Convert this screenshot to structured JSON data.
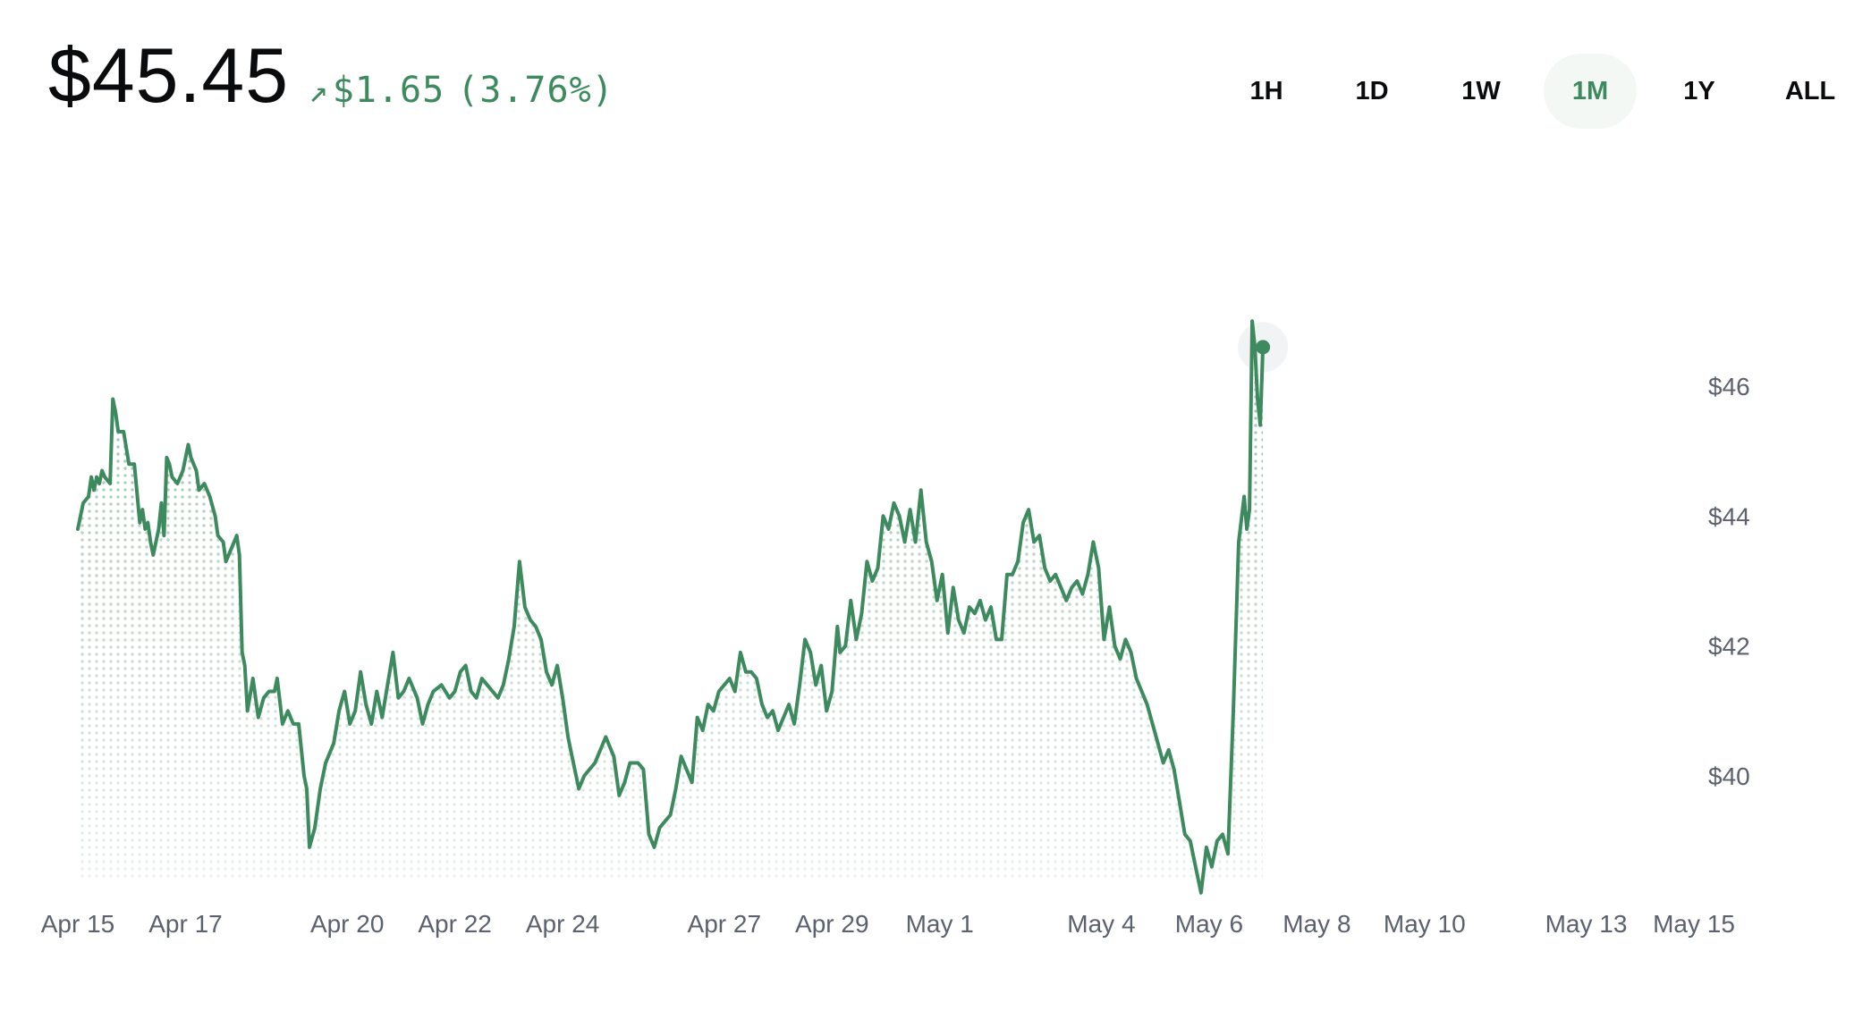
{
  "header": {
    "price": "$45.45",
    "change_arrow": "↗",
    "change_amount": "$1.65",
    "change_percent": "(3.76%)"
  },
  "time_ranges": [
    {
      "label": "1H",
      "active": false
    },
    {
      "label": "1D",
      "active": false
    },
    {
      "label": "1W",
      "active": false
    },
    {
      "label": "1M",
      "active": true
    },
    {
      "label": "1Y",
      "active": false
    },
    {
      "label": "ALL",
      "active": false
    }
  ],
  "colors": {
    "line": "#3c8a5e",
    "accent": "#3c8a5e",
    "axis_text": "#5b616e",
    "price_text": "#0a0b0d"
  },
  "chart_data": {
    "type": "line",
    "title": "",
    "xlabel": "",
    "ylabel": "",
    "y_tick_labels": [
      "$40",
      "$42",
      "$44",
      "$46"
    ],
    "y_tick_values": [
      40,
      42,
      44,
      46
    ],
    "x_tick_labels": [
      "Apr 15",
      "Apr 17",
      "Apr 20",
      "Apr 22",
      "Apr 24",
      "Apr 27",
      "Apr 29",
      "May 1",
      "May 4",
      "May 6",
      "May 8",
      "May 10",
      "May 13",
      "May 15"
    ],
    "x_tick_days": [
      0,
      2,
      5,
      7,
      9,
      12,
      14,
      16,
      19,
      21,
      23,
      25,
      28,
      30
    ],
    "x_range_days": [
      0,
      30.4
    ],
    "ylim": [
      38.4,
      47.2
    ],
    "grid": false,
    "fill": "dotted gradient under line",
    "series": [
      {
        "values": [
          [
            0.0,
            43.8
          ],
          [
            0.1,
            44.2
          ],
          [
            0.2,
            44.3
          ],
          [
            0.25,
            44.6
          ],
          [
            0.3,
            44.4
          ],
          [
            0.35,
            44.6
          ],
          [
            0.4,
            44.5
          ],
          [
            0.45,
            44.7
          ],
          [
            0.5,
            44.6
          ],
          [
            0.6,
            44.5
          ],
          [
            0.65,
            45.8
          ],
          [
            0.7,
            45.6
          ],
          [
            0.75,
            45.3
          ],
          [
            0.85,
            45.3
          ],
          [
            0.95,
            44.8
          ],
          [
            1.05,
            44.8
          ],
          [
            1.15,
            43.9
          ],
          [
            1.2,
            44.1
          ],
          [
            1.25,
            43.8
          ],
          [
            1.3,
            43.9
          ],
          [
            1.35,
            43.6
          ],
          [
            1.4,
            43.4
          ],
          [
            1.5,
            43.8
          ],
          [
            1.55,
            44.2
          ],
          [
            1.6,
            43.7
          ],
          [
            1.65,
            44.9
          ],
          [
            1.7,
            44.8
          ],
          [
            1.75,
            44.6
          ],
          [
            1.85,
            44.5
          ],
          [
            1.95,
            44.7
          ],
          [
            2.0,
            44.9
          ],
          [
            2.05,
            45.1
          ],
          [
            2.1,
            44.9
          ],
          [
            2.2,
            44.7
          ],
          [
            2.25,
            44.4
          ],
          [
            2.35,
            44.5
          ],
          [
            2.45,
            44.3
          ],
          [
            2.55,
            44.0
          ],
          [
            2.6,
            43.7
          ],
          [
            2.7,
            43.6
          ],
          [
            2.75,
            43.3
          ],
          [
            2.85,
            43.5
          ],
          [
            2.95,
            43.7
          ],
          [
            3.0,
            43.4
          ],
          [
            3.05,
            41.9
          ],
          [
            3.1,
            41.7
          ],
          [
            3.15,
            41.0
          ],
          [
            3.25,
            41.5
          ],
          [
            3.35,
            40.9
          ],
          [
            3.45,
            41.2
          ],
          [
            3.55,
            41.3
          ],
          [
            3.65,
            41.3
          ],
          [
            3.7,
            41.5
          ],
          [
            3.8,
            40.8
          ],
          [
            3.9,
            41.0
          ],
          [
            4.0,
            40.8
          ],
          [
            4.1,
            40.8
          ],
          [
            4.2,
            40.0
          ],
          [
            4.25,
            39.8
          ],
          [
            4.3,
            38.9
          ],
          [
            4.4,
            39.2
          ],
          [
            4.5,
            39.8
          ],
          [
            4.6,
            40.2
          ],
          [
            4.75,
            40.5
          ],
          [
            4.85,
            41.0
          ],
          [
            4.95,
            41.3
          ],
          [
            5.05,
            40.8
          ],
          [
            5.15,
            41.0
          ],
          [
            5.25,
            41.6
          ],
          [
            5.35,
            41.1
          ],
          [
            5.45,
            40.8
          ],
          [
            5.55,
            41.3
          ],
          [
            5.65,
            40.9
          ],
          [
            5.75,
            41.4
          ],
          [
            5.85,
            41.9
          ],
          [
            5.95,
            41.2
          ],
          [
            6.05,
            41.3
          ],
          [
            6.15,
            41.5
          ],
          [
            6.3,
            41.2
          ],
          [
            6.4,
            40.8
          ],
          [
            6.5,
            41.1
          ],
          [
            6.6,
            41.3
          ],
          [
            6.75,
            41.4
          ],
          [
            6.9,
            41.2
          ],
          [
            7.0,
            41.3
          ],
          [
            7.1,
            41.6
          ],
          [
            7.2,
            41.7
          ],
          [
            7.3,
            41.3
          ],
          [
            7.4,
            41.2
          ],
          [
            7.5,
            41.5
          ],
          [
            7.6,
            41.4
          ],
          [
            7.7,
            41.3
          ],
          [
            7.8,
            41.2
          ],
          [
            7.9,
            41.4
          ],
          [
            8.0,
            41.8
          ],
          [
            8.1,
            42.3
          ],
          [
            8.2,
            43.3
          ],
          [
            8.3,
            42.6
          ],
          [
            8.4,
            42.4
          ],
          [
            8.5,
            42.3
          ],
          [
            8.6,
            42.1
          ],
          [
            8.7,
            41.6
          ],
          [
            8.8,
            41.4
          ],
          [
            8.9,
            41.7
          ],
          [
            9.0,
            41.2
          ],
          [
            9.1,
            40.6
          ],
          [
            9.2,
            40.2
          ],
          [
            9.3,
            39.8
          ],
          [
            9.4,
            40.0
          ],
          [
            9.5,
            40.1
          ],
          [
            9.6,
            40.2
          ],
          [
            9.7,
            40.4
          ],
          [
            9.8,
            40.6
          ],
          [
            9.85,
            40.5
          ],
          [
            9.95,
            40.3
          ],
          [
            10.05,
            39.7
          ],
          [
            10.15,
            39.9
          ],
          [
            10.25,
            40.2
          ],
          [
            10.4,
            40.2
          ],
          [
            10.5,
            40.1
          ],
          [
            10.55,
            39.6
          ],
          [
            10.6,
            39.1
          ],
          [
            10.7,
            38.9
          ],
          [
            10.8,
            39.2
          ],
          [
            10.9,
            39.3
          ],
          [
            11.0,
            39.4
          ],
          [
            11.1,
            39.8
          ],
          [
            11.2,
            40.3
          ],
          [
            11.3,
            40.1
          ],
          [
            11.4,
            39.9
          ],
          [
            11.5,
            40.9
          ],
          [
            11.6,
            40.7
          ],
          [
            11.7,
            41.1
          ],
          [
            11.8,
            41.0
          ],
          [
            11.9,
            41.3
          ],
          [
            12.0,
            41.4
          ],
          [
            12.1,
            41.5
          ],
          [
            12.2,
            41.3
          ],
          [
            12.3,
            41.9
          ],
          [
            12.4,
            41.6
          ],
          [
            12.5,
            41.6
          ],
          [
            12.6,
            41.5
          ],
          [
            12.7,
            41.1
          ],
          [
            12.8,
            40.9
          ],
          [
            12.9,
            41.0
          ],
          [
            13.0,
            40.7
          ],
          [
            13.1,
            40.9
          ],
          [
            13.2,
            41.1
          ],
          [
            13.3,
            40.8
          ],
          [
            13.4,
            41.4
          ],
          [
            13.5,
            42.1
          ],
          [
            13.6,
            41.9
          ],
          [
            13.7,
            41.4
          ],
          [
            13.8,
            41.7
          ],
          [
            13.9,
            41.0
          ],
          [
            14.0,
            41.3
          ],
          [
            14.1,
            42.3
          ],
          [
            14.15,
            41.9
          ],
          [
            14.25,
            42.0
          ],
          [
            14.35,
            42.7
          ],
          [
            14.45,
            42.1
          ],
          [
            14.55,
            42.5
          ],
          [
            14.65,
            43.3
          ],
          [
            14.75,
            43.0
          ],
          [
            14.85,
            43.2
          ],
          [
            14.95,
            44.0
          ],
          [
            15.05,
            43.8
          ],
          [
            15.15,
            44.2
          ],
          [
            15.25,
            44.0
          ],
          [
            15.35,
            43.6
          ],
          [
            15.45,
            44.1
          ],
          [
            15.55,
            43.6
          ],
          [
            15.65,
            44.4
          ],
          [
            15.75,
            43.6
          ],
          [
            15.85,
            43.3
          ],
          [
            15.95,
            42.7
          ],
          [
            16.05,
            43.1
          ],
          [
            16.15,
            42.2
          ],
          [
            16.25,
            42.9
          ],
          [
            16.35,
            42.4
          ],
          [
            16.45,
            42.2
          ],
          [
            16.55,
            42.6
          ],
          [
            16.65,
            42.5
          ],
          [
            16.75,
            42.7
          ],
          [
            16.85,
            42.4
          ],
          [
            16.95,
            42.6
          ],
          [
            17.05,
            42.1
          ],
          [
            17.15,
            42.1
          ],
          [
            17.25,
            43.1
          ],
          [
            17.35,
            43.1
          ],
          [
            17.45,
            43.3
          ],
          [
            17.55,
            43.9
          ],
          [
            17.65,
            44.1
          ],
          [
            17.75,
            43.6
          ],
          [
            17.85,
            43.7
          ],
          [
            17.95,
            43.2
          ],
          [
            18.05,
            43.0
          ],
          [
            18.15,
            43.1
          ],
          [
            18.25,
            42.9
          ],
          [
            18.35,
            42.7
          ],
          [
            18.45,
            42.9
          ],
          [
            18.55,
            43.0
          ],
          [
            18.65,
            42.8
          ],
          [
            18.75,
            43.1
          ],
          [
            18.85,
            43.6
          ],
          [
            18.95,
            43.2
          ],
          [
            19.05,
            42.1
          ],
          [
            19.15,
            42.6
          ],
          [
            19.25,
            42.0
          ],
          [
            19.35,
            41.8
          ],
          [
            19.45,
            42.1
          ],
          [
            19.55,
            41.9
          ],
          [
            19.65,
            41.5
          ],
          [
            19.75,
            41.3
          ],
          [
            19.85,
            41.1
          ],
          [
            19.95,
            40.8
          ],
          [
            20.05,
            40.5
          ],
          [
            20.15,
            40.2
          ],
          [
            20.25,
            40.4
          ],
          [
            20.35,
            40.1
          ],
          [
            20.45,
            39.6
          ],
          [
            20.55,
            39.1
          ],
          [
            20.65,
            39.0
          ],
          [
            20.75,
            38.6
          ],
          [
            20.85,
            38.2
          ],
          [
            20.95,
            38.9
          ],
          [
            21.05,
            38.6
          ],
          [
            21.15,
            39.0
          ],
          [
            21.25,
            39.1
          ],
          [
            21.35,
            38.8
          ],
          [
            21.45,
            41.0
          ],
          [
            21.55,
            43.6
          ],
          [
            21.65,
            44.3
          ],
          [
            21.7,
            43.8
          ],
          [
            21.75,
            44.1
          ],
          [
            21.8,
            47.0
          ],
          [
            21.85,
            46.6
          ],
          [
            21.9,
            45.8
          ],
          [
            21.95,
            45.4
          ],
          [
            22.0,
            46.6
          ]
        ]
      }
    ]
  }
}
